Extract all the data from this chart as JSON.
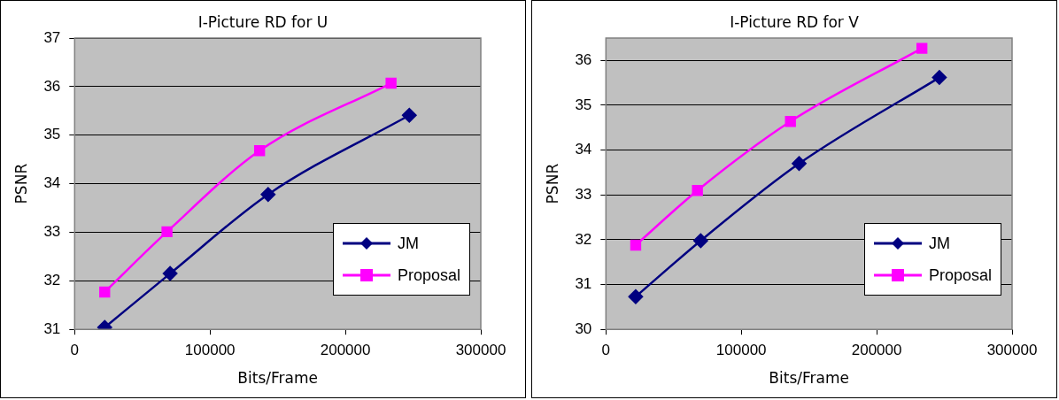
{
  "chart_data": [
    {
      "type": "line",
      "title": "I-Picture RD for U",
      "xlabel": "Bits/Frame",
      "ylabel": "PSNR",
      "xlim": [
        0,
        300000
      ],
      "xticks": [
        0,
        100000,
        200000,
        300000
      ],
      "ylim": [
        31,
        37
      ],
      "yticks": [
        31,
        32,
        33,
        34,
        35,
        36,
        37
      ],
      "grid": "y",
      "legend": "bottom right",
      "series": [
        {
          "name": "JM",
          "color": "#000080",
          "marker": "diamond",
          "x": [
            22200,
            70500,
            142900,
            247200
          ],
          "values": [
            31.04,
            32.15,
            33.78,
            35.41
          ]
        },
        {
          "name": "Proposal",
          "color": "#ff00ff",
          "marker": "square",
          "x": [
            22200,
            68200,
            136600,
            233700
          ],
          "values": [
            31.77,
            33.01,
            34.68,
            36.07
          ]
        }
      ]
    },
    {
      "type": "line",
      "title": "I-Picture RD for V",
      "xlabel": "Bits/Frame",
      "ylabel": "PSNR",
      "xlim": [
        0,
        300000
      ],
      "xticks": [
        0,
        100000,
        200000,
        300000
      ],
      "ylim": [
        30,
        36.5
      ],
      "yticks": [
        30,
        31,
        32,
        33,
        34,
        35,
        36
      ],
      "grid": "y",
      "legend": "bottom right",
      "series": [
        {
          "name": "JM",
          "color": "#000080",
          "marker": "diamond",
          "x": [
            22000,
            70000,
            142700,
            246300
          ],
          "values": [
            30.73,
            31.98,
            33.7,
            35.62
          ]
        },
        {
          "name": "Proposal",
          "color": "#ff00ff",
          "marker": "square",
          "x": [
            22000,
            67600,
            136300,
            233400
          ],
          "values": [
            31.88,
            33.1,
            34.64,
            36.27
          ]
        }
      ]
    }
  ]
}
